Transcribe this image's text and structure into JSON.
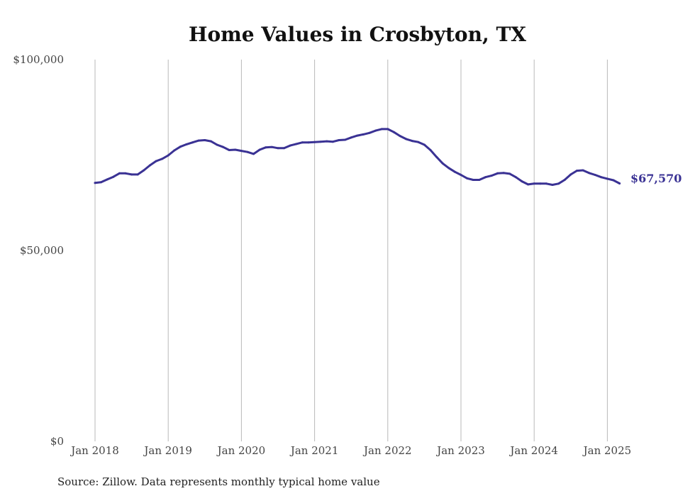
{
  "chart_data": {
    "type": "line",
    "title": "Home Values in Crosbyton, TX",
    "source": "Source: Zillow. Data represents monthly typical home value",
    "xlabel": "",
    "ylabel": "",
    "ylim": [
      0,
      100000
    ],
    "yticks": [
      {
        "value": 0,
        "label": "$0"
      },
      {
        "value": 50000,
        "label": "$50,000"
      },
      {
        "value": 100000,
        "label": "$100,000"
      }
    ],
    "xticks": [
      {
        "year": 2018,
        "label": "Jan 2018"
      },
      {
        "year": 2019,
        "label": "Jan 2019"
      },
      {
        "year": 2020,
        "label": "Jan 2020"
      },
      {
        "year": 2021,
        "label": "Jan 2021"
      },
      {
        "year": 2022,
        "label": "Jan 2022"
      },
      {
        "year": 2023,
        "label": "Jan 2023"
      },
      {
        "year": 2024,
        "label": "Jan 2024"
      },
      {
        "year": 2025,
        "label": "Jan 2025"
      }
    ],
    "grid": "vertical",
    "line_color": "#3a3294",
    "end_label": "$67,570",
    "series": [
      {
        "x": [
          "2018-01",
          "2018-02",
          "2018-03",
          "2018-04",
          "2018-05",
          "2018-06",
          "2018-07",
          "2018-08",
          "2018-09",
          "2018-10",
          "2018-11",
          "2018-12",
          "2019-01",
          "2019-02",
          "2019-03",
          "2019-04",
          "2019-05",
          "2019-06",
          "2019-07",
          "2019-08",
          "2019-09",
          "2019-10",
          "2019-11",
          "2019-12",
          "2020-01",
          "2020-02",
          "2020-03",
          "2020-04",
          "2020-05",
          "2020-06",
          "2020-07",
          "2020-08",
          "2020-09",
          "2020-10",
          "2020-11",
          "2020-12",
          "2021-01",
          "2021-02",
          "2021-03",
          "2021-04",
          "2021-05",
          "2021-06",
          "2021-07",
          "2021-08",
          "2021-09",
          "2021-10",
          "2021-11",
          "2021-12",
          "2022-01",
          "2022-02",
          "2022-03",
          "2022-04",
          "2022-05",
          "2022-06",
          "2022-07",
          "2022-08",
          "2022-09",
          "2022-10",
          "2022-11",
          "2022-12",
          "2023-01",
          "2023-02",
          "2023-03",
          "2023-04",
          "2023-05",
          "2023-06",
          "2023-07",
          "2023-08",
          "2023-09",
          "2023-10",
          "2023-11",
          "2023-12",
          "2024-01",
          "2024-02",
          "2024-03",
          "2024-04",
          "2024-05",
          "2024-06",
          "2024-07",
          "2024-08",
          "2024-09",
          "2024-10",
          "2024-11",
          "2024-12",
          "2025-01",
          "2025-02",
          "2025-03"
        ],
        "values": [
          67700,
          67900,
          68600,
          69300,
          70200,
          70200,
          69900,
          69900,
          71000,
          72300,
          73400,
          74000,
          74900,
          76200,
          77200,
          77800,
          78300,
          78800,
          78900,
          78600,
          77700,
          77100,
          76300,
          76400,
          76100,
          75800,
          75300,
          76400,
          77000,
          77100,
          76800,
          76800,
          77500,
          77900,
          78300,
          78300,
          78400,
          78500,
          78600,
          78500,
          78900,
          79000,
          79600,
          80100,
          80400,
          80800,
          81400,
          81800,
          81800,
          81000,
          80000,
          79200,
          78700,
          78400,
          77700,
          76300,
          74500,
          72800,
          71600,
          70600,
          69800,
          68900,
          68500,
          68500,
          69200,
          69600,
          70200,
          70300,
          70100,
          69200,
          68100,
          67300,
          67500,
          67500,
          67500,
          67200,
          67500,
          68500,
          69900,
          70900,
          71000,
          70300,
          69800,
          69200,
          68800,
          68400,
          67570
        ]
      }
    ]
  }
}
